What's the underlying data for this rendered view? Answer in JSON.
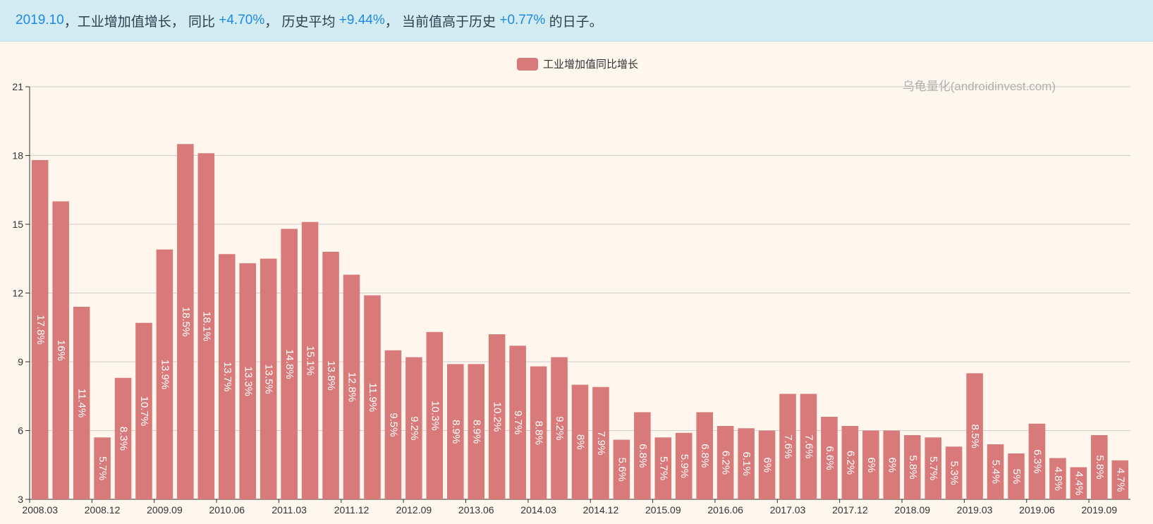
{
  "banner": {
    "date": "2019.10",
    "subject": "，工业增加值增长， 同比 ",
    "yoy": "+4.70%",
    "hist_label": "， 历史平均 ",
    "hist_avg": "+9.44%",
    "cur_label": "， 当前值高于历史 ",
    "above": "+0.77%",
    "suffix": " 的日子。"
  },
  "watermark": "乌龟量化(androidinvest.com)",
  "colors": {
    "bar": "#d97a7a",
    "banner_bg": "#d2ecf1",
    "highlight": "#1e88e5"
  },
  "chart_data": {
    "type": "bar",
    "title": "",
    "xlabel": "",
    "ylabel": "",
    "ylim": [
      3,
      21
    ],
    "yticks": [
      3,
      6,
      9,
      12,
      15,
      18,
      21
    ],
    "grid": true,
    "legend": "top-center",
    "x_tick_labels": [
      "2008.03",
      "2008.12",
      "2009.09",
      "2010.06",
      "2011.03",
      "2011.12",
      "2012.09",
      "2013.06",
      "2014.03",
      "2014.12",
      "2015.09",
      "2016.06",
      "2017.03",
      "2017.12",
      "2018.09",
      "2019.03",
      "2019.06",
      "2019.09"
    ],
    "series": [
      {
        "name": "工业增加值同比增长",
        "values": [
          17.8,
          16,
          11.4,
          5.7,
          8.3,
          10.7,
          13.9,
          18.5,
          18.1,
          13.7,
          13.3,
          13.5,
          14.8,
          15.1,
          13.8,
          12.8,
          11.9,
          9.5,
          9.2,
          10.3,
          8.9,
          8.9,
          10.2,
          9.7,
          8.8,
          9.2,
          8,
          7.9,
          5.6,
          6.8,
          5.7,
          5.9,
          6.8,
          6.2,
          6.1,
          6,
          7.6,
          7.6,
          6.6,
          6.2,
          6,
          6,
          5.8,
          5.7,
          5.3,
          8.5,
          5.4,
          5,
          6.3,
          4.8,
          4.4,
          5.8,
          4.7
        ],
        "labels": [
          "17.8%",
          "16%",
          "11.4%",
          "5.7%",
          "8.3%",
          "10.7%",
          "13.9%",
          "18.5%",
          "18.1%",
          "13.7%",
          "13.3%",
          "13.5%",
          "14.8%",
          "15.1%",
          "13.8%",
          "12.8%",
          "11.9%",
          "9.5%",
          "9.2%",
          "10.3%",
          "8.9%",
          "8.9%",
          "10.2%",
          "9.7%",
          "8.8%",
          "9.2%",
          "8%",
          "7.9%",
          "5.6%",
          "6.8%",
          "5.7%",
          "5.9%",
          "6.8%",
          "6.2%",
          "6.1%",
          "6%",
          "7.6%",
          "7.6%",
          "6.6%",
          "6.2%",
          "6%",
          "6%",
          "5.8%",
          "5.7%",
          "5.3%",
          "8.5%",
          "5.4%",
          "5%",
          "6.3%",
          "4.8%",
          "4.4%",
          "5.8%",
          "4.7%"
        ]
      }
    ]
  }
}
